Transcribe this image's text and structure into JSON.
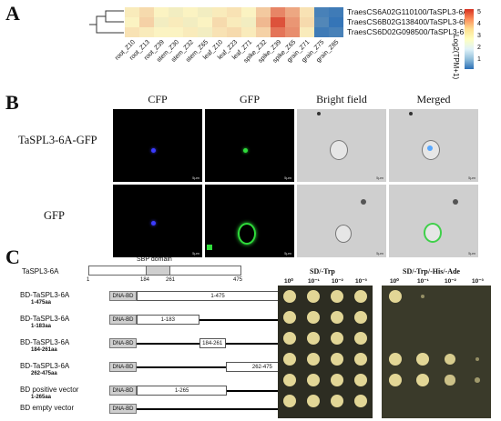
{
  "panels": {
    "a": "A",
    "b": "B",
    "c": "C"
  },
  "heatmap": {
    "genes": [
      "TraesCS6A02G110100/TaSPL3-6A",
      "TraesCS6B02G138400/TaSPL3-6B",
      "TraesCS6D02G098500/TaSPL3-6D"
    ],
    "tissues": [
      "root_Z10",
      "root_Z13",
      "root_Z39",
      "stem_Z30",
      "stem_Z32",
      "stem_Z65",
      "leaf_Z10",
      "leaf_Z23",
      "leaf_Z71",
      "spike_Z32",
      "spike_Z39",
      "spike_Z65",
      "grain_Z71",
      "grain_Z75",
      "grain_Z85"
    ],
    "values": [
      [
        2.8,
        3.0,
        2.7,
        2.6,
        2.7,
        2.6,
        2.8,
        2.9,
        2.7,
        3.2,
        4.0,
        3.6,
        2.9,
        0.8,
        0.7
      ],
      [
        2.7,
        3.1,
        2.6,
        2.8,
        2.6,
        2.7,
        3.0,
        2.8,
        2.6,
        3.4,
        4.6,
        3.8,
        3.0,
        0.9,
        0.6
      ],
      [
        2.9,
        2.8,
        2.7,
        2.7,
        2.8,
        2.6,
        2.9,
        3.0,
        2.8,
        3.1,
        4.2,
        3.9,
        2.8,
        0.7,
        0.8
      ]
    ],
    "legend_title": "Log2(TPM+1)",
    "legend_ticks": [
      "5",
      "4",
      "3",
      "2",
      "1"
    ],
    "colors": {
      "low": "#2c6fb6",
      "mid": "#fbf3c2",
      "high": "#d7301f"
    }
  },
  "microscopy": {
    "columns": [
      "CFP",
      "GFP",
      "Bright field",
      "Merged"
    ],
    "rows": [
      "TaSPL3-6A-GFP",
      "GFP"
    ],
    "scale_label": "5μm"
  },
  "y2h": {
    "protein": "TaSPL3-6A",
    "domain_label": "SBP domain",
    "ticks": [
      "1",
      "184",
      "261",
      "475"
    ],
    "constructs": [
      {
        "label": "BD-TaSPL3-6A",
        "sub": "1-475aa",
        "segment": "1-475",
        "start": 1,
        "end": 475
      },
      {
        "label": "BD-TaSPL3-6A",
        "sub": "1-183aa",
        "segment": "1-183",
        "start": 1,
        "end": 183
      },
      {
        "label": "BD-TaSPL3-6A",
        "sub": "184-261aa",
        "segment": "184-261",
        "start": 184,
        "end": 261
      },
      {
        "label": "BD-TaSPL3-6A",
        "sub": "262-475aa",
        "segment": "262-475",
        "start": 262,
        "end": 475
      },
      {
        "label": "BD positive vector",
        "sub": "1-265aa",
        "segment": "1-265",
        "start": 1,
        "end": 265
      },
      {
        "label": "BD empty vector",
        "sub": "",
        "segment": "",
        "start": 0,
        "end": 0
      }
    ],
    "dbd_label": "DNA-BD",
    "plate1_title": "SD/-Trp",
    "plate2_title": "SD/-Trp/-His/-Ade",
    "dilutions": [
      "10⁰",
      "10⁻¹",
      "10⁻²",
      "10⁻³"
    ],
    "plate1_growth": [
      [
        1,
        1,
        1,
        1
      ],
      [
        1,
        1,
        1,
        1
      ],
      [
        1,
        1,
        1,
        1
      ],
      [
        1,
        1,
        1,
        1
      ],
      [
        1,
        1,
        1,
        1
      ],
      [
        1,
        1,
        1,
        1
      ]
    ],
    "plate2_growth": [
      [
        1,
        0.3,
        0,
        0
      ],
      [
        0,
        0,
        0,
        0
      ],
      [
        0,
        0,
        0,
        0
      ],
      [
        1,
        1,
        0.9,
        0.3
      ],
      [
        1,
        1,
        0.8,
        0.4
      ],
      [
        0,
        0,
        0,
        0
      ]
    ]
  }
}
